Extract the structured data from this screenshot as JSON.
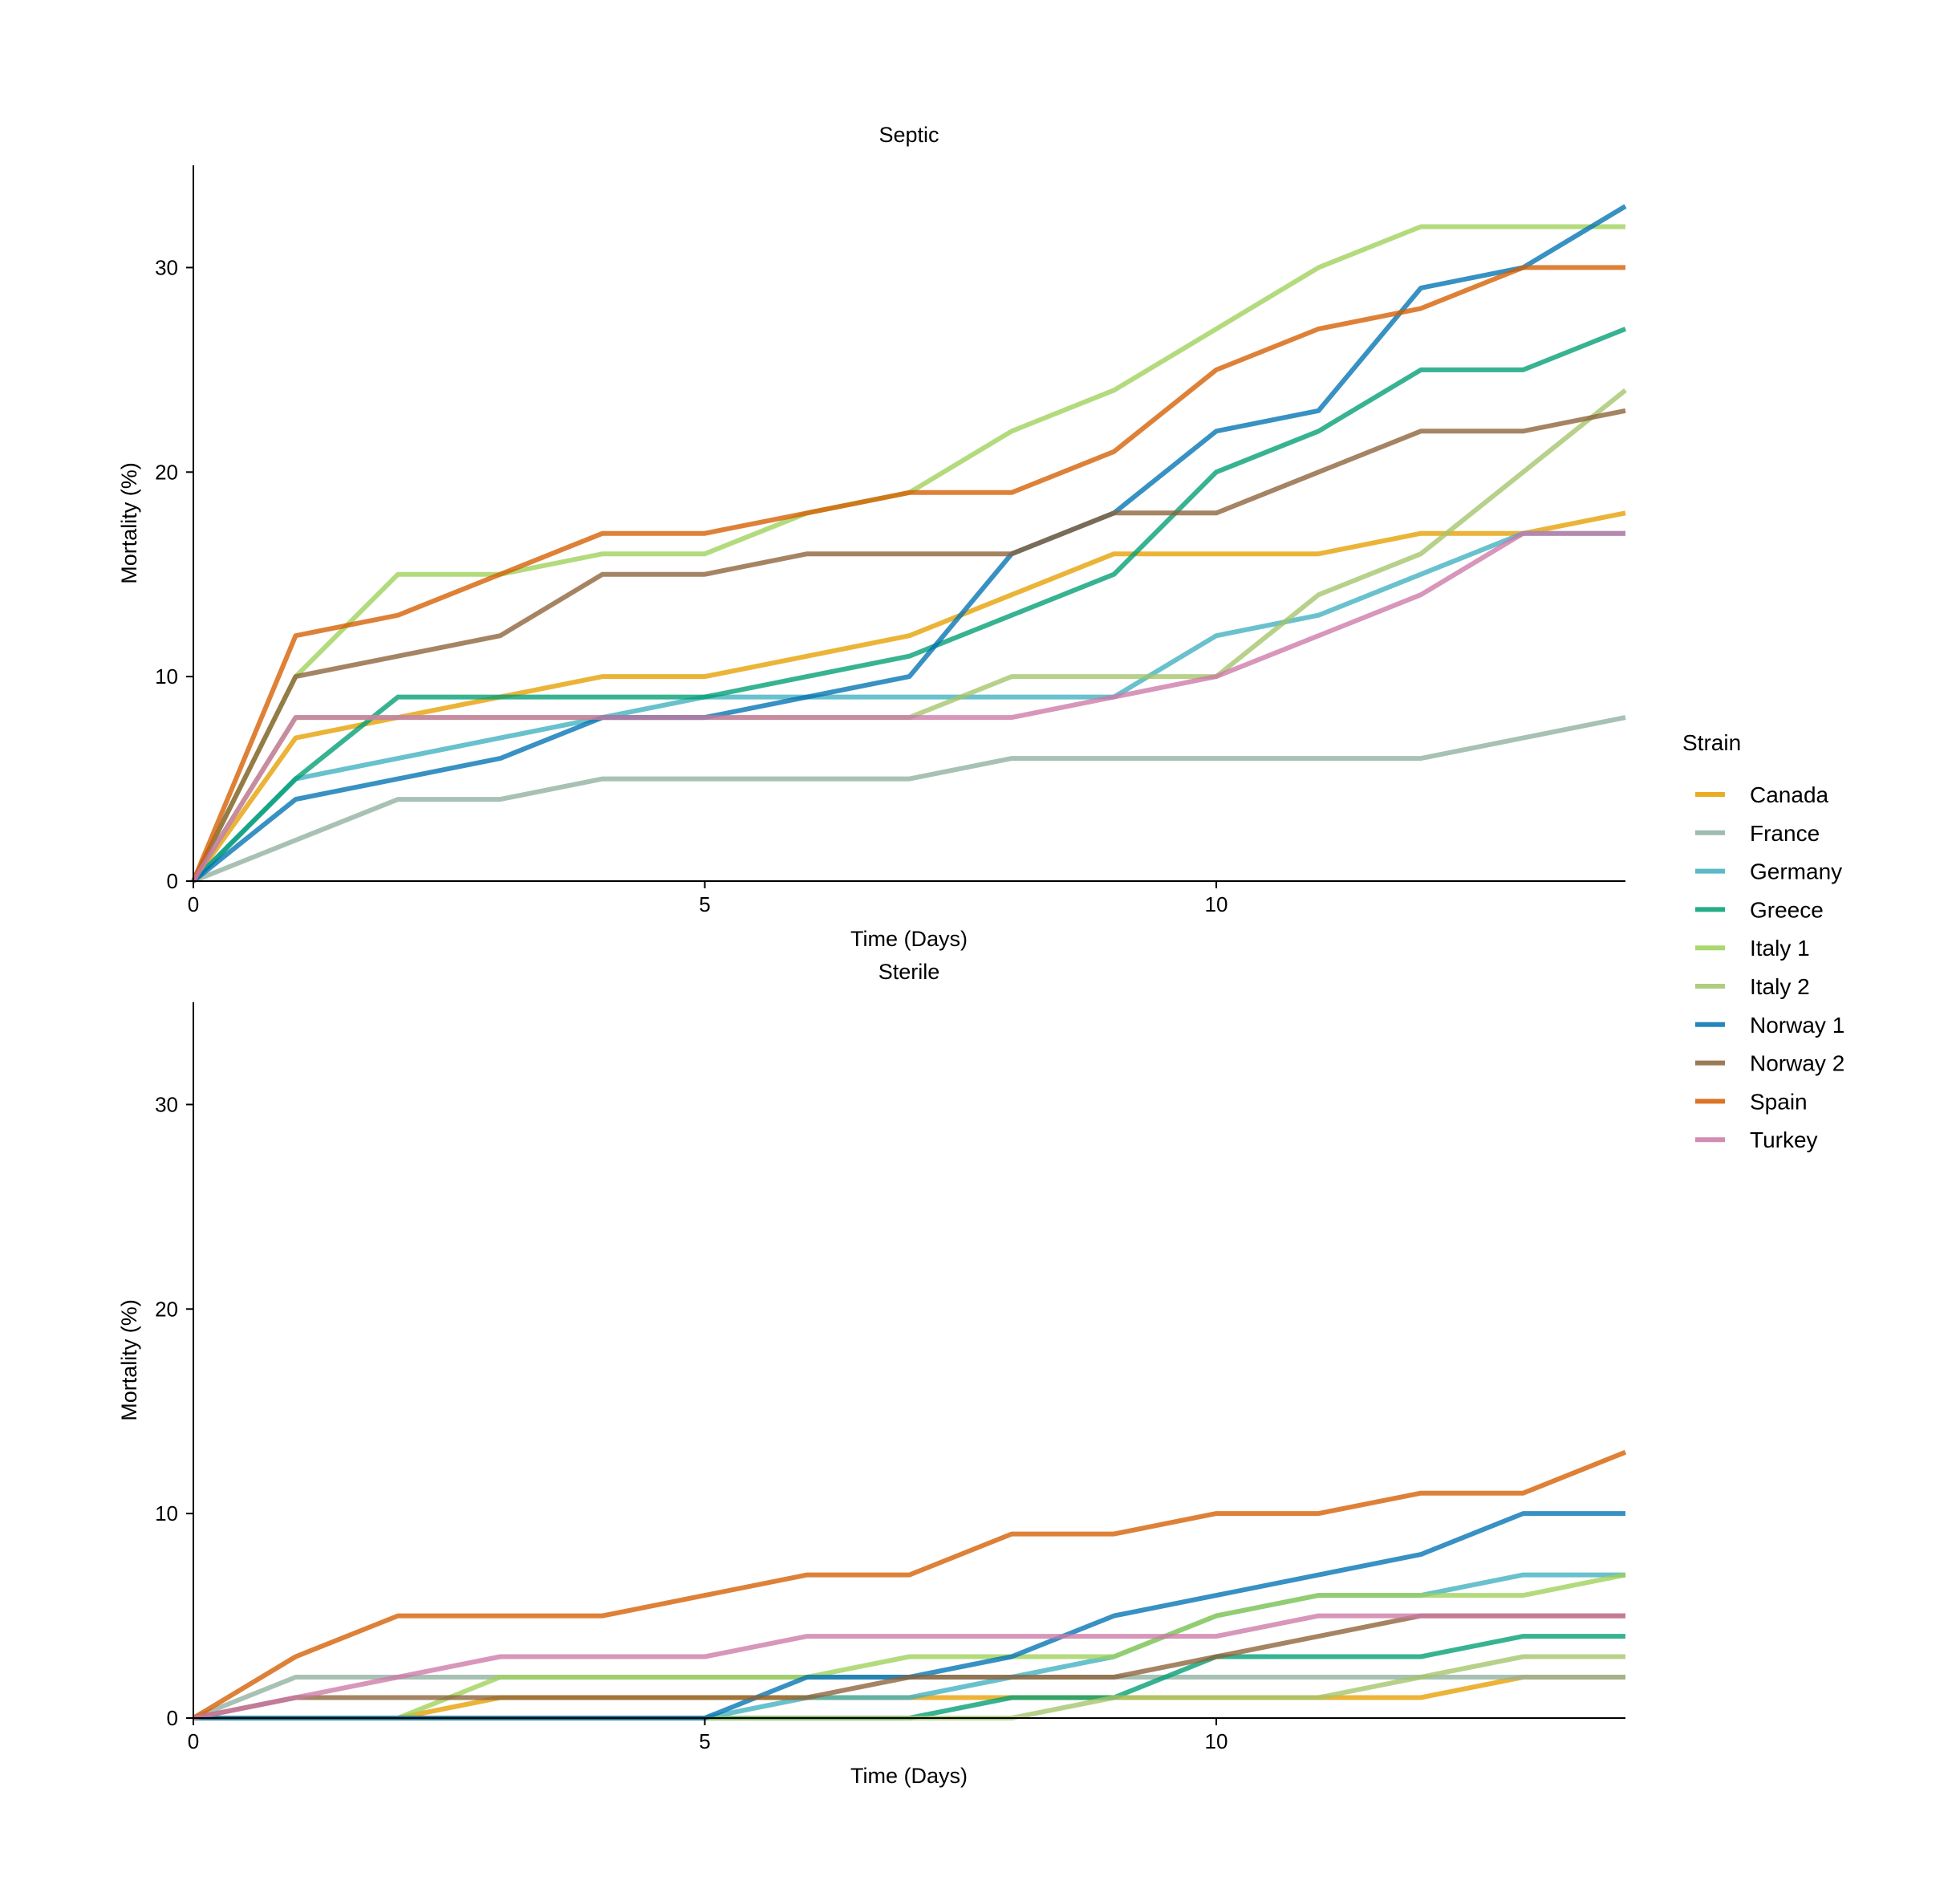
{
  "legend": {
    "title": "Strain",
    "placement": "right"
  },
  "chart_data": [
    {
      "type": "line",
      "title": "Septic",
      "xlabel": "Time (Days)",
      "ylabel": "Mortality (%)",
      "xlim": [
        0,
        14
      ],
      "ylim": [
        0,
        35
      ],
      "xticks": [
        0,
        5,
        10
      ],
      "yticks": [
        0,
        10,
        20,
        30
      ],
      "grid": false,
      "x": [
        0,
        1,
        2,
        3,
        4,
        5,
        6,
        7,
        8,
        9,
        10,
        11,
        12,
        13,
        14
      ],
      "series": [
        {
          "name": "Canada",
          "color": "#E69F00",
          "values": [
            0,
            7,
            8,
            9,
            10,
            10,
            11,
            12,
            14,
            16,
            16,
            16,
            17,
            17,
            18
          ]
        },
        {
          "name": "France",
          "color": "#8FB0A0",
          "values": [
            0,
            2,
            4,
            4,
            5,
            5,
            5,
            5,
            6,
            6,
            6,
            6,
            6,
            7,
            8
          ]
        },
        {
          "name": "Germany",
          "color": "#3FAFBF",
          "values": [
            0,
            5,
            6,
            7,
            8,
            9,
            9,
            9,
            9,
            9,
            12,
            13,
            15,
            17,
            17
          ]
        },
        {
          "name": "Greece",
          "color": "#009E73",
          "values": [
            0,
            5,
            9,
            9,
            9,
            9,
            10,
            11,
            13,
            15,
            20,
            22,
            25,
            25,
            27
          ]
        },
        {
          "name": "Italy 1",
          "color": "#9DD158",
          "values": [
            0,
            10,
            15,
            15,
            16,
            16,
            18,
            19,
            22,
            24,
            27,
            30,
            32,
            32,
            32
          ]
        },
        {
          "name": "Italy 2",
          "color": "#A3C46A",
          "values": [
            0,
            8,
            8,
            8,
            8,
            8,
            8,
            8,
            10,
            10,
            10,
            14,
            16,
            20,
            24
          ]
        },
        {
          "name": "Norway 1",
          "color": "#0072B2",
          "values": [
            0,
            4,
            5,
            6,
            8,
            8,
            9,
            10,
            16,
            18,
            22,
            23,
            29,
            30,
            33
          ]
        },
        {
          "name": "Norway 2",
          "color": "#8C6239",
          "values": [
            0,
            10,
            11,
            12,
            15,
            15,
            16,
            16,
            16,
            18,
            18,
            20,
            22,
            22,
            23
          ]
        },
        {
          "name": "Spain",
          "color": "#D55E00",
          "values": [
            0,
            12,
            13,
            15,
            17,
            17,
            18,
            19,
            19,
            21,
            25,
            27,
            28,
            30,
            30
          ]
        },
        {
          "name": "Turkey",
          "color": "#CC79A7",
          "values": [
            0,
            8,
            8,
            8,
            8,
            8,
            8,
            8,
            8,
            9,
            10,
            12,
            14,
            17,
            17
          ]
        }
      ]
    },
    {
      "type": "line",
      "title": "Sterile",
      "xlabel": "Time (Days)",
      "ylabel": "Mortality (%)",
      "xlim": [
        0,
        14
      ],
      "ylim": [
        0,
        35
      ],
      "xticks": [
        0,
        5,
        10
      ],
      "yticks": [
        0,
        10,
        20,
        30
      ],
      "grid": false,
      "x": [
        0,
        1,
        2,
        3,
        4,
        5,
        6,
        7,
        8,
        9,
        10,
        11,
        12,
        13,
        14
      ],
      "series": [
        {
          "name": "Canada",
          "color": "#E69F00",
          "values": [
            0,
            0,
            0,
            1,
            1,
            1,
            1,
            1,
            1,
            1,
            1,
            1,
            1,
            2,
            2
          ]
        },
        {
          "name": "France",
          "color": "#8FB0A0",
          "values": [
            0,
            2,
            2,
            2,
            2,
            2,
            2,
            2,
            2,
            2,
            2,
            2,
            2,
            2,
            2
          ]
        },
        {
          "name": "Germany",
          "color": "#3FAFBF",
          "values": [
            0,
            0,
            0,
            0,
            0,
            0,
            1,
            1,
            2,
            3,
            5,
            6,
            6,
            7,
            7
          ]
        },
        {
          "name": "Greece",
          "color": "#009E73",
          "values": [
            0,
            0,
            0,
            0,
            0,
            0,
            0,
            0,
            1,
            1,
            3,
            3,
            3,
            4,
            4
          ]
        },
        {
          "name": "Italy 1",
          "color": "#9DD158",
          "values": [
            0,
            0,
            0,
            2,
            2,
            2,
            2,
            3,
            3,
            3,
            5,
            6,
            6,
            6,
            7
          ]
        },
        {
          "name": "Italy 2",
          "color": "#A3C46A",
          "values": [
            0,
            0,
            0,
            0,
            0,
            0,
            0,
            0,
            0,
            1,
            1,
            1,
            2,
            3,
            3
          ]
        },
        {
          "name": "Norway 1",
          "color": "#0072B2",
          "values": [
            0,
            0,
            0,
            0,
            0,
            0,
            2,
            2,
            3,
            5,
            6,
            7,
            8,
            10,
            10
          ]
        },
        {
          "name": "Norway 2",
          "color": "#8C6239",
          "values": [
            0,
            1,
            1,
            1,
            1,
            1,
            1,
            2,
            2,
            2,
            3,
            4,
            5,
            5,
            5
          ]
        },
        {
          "name": "Spain",
          "color": "#D55E00",
          "values": [
            0,
            3,
            5,
            5,
            5,
            6,
            7,
            7,
            9,
            9,
            10,
            10,
            11,
            11,
            13
          ]
        },
        {
          "name": "Turkey",
          "color": "#CC79A7",
          "values": [
            0,
            1,
            2,
            3,
            3,
            3,
            4,
            4,
            4,
            4,
            4,
            5,
            5,
            5,
            5
          ]
        }
      ]
    }
  ]
}
